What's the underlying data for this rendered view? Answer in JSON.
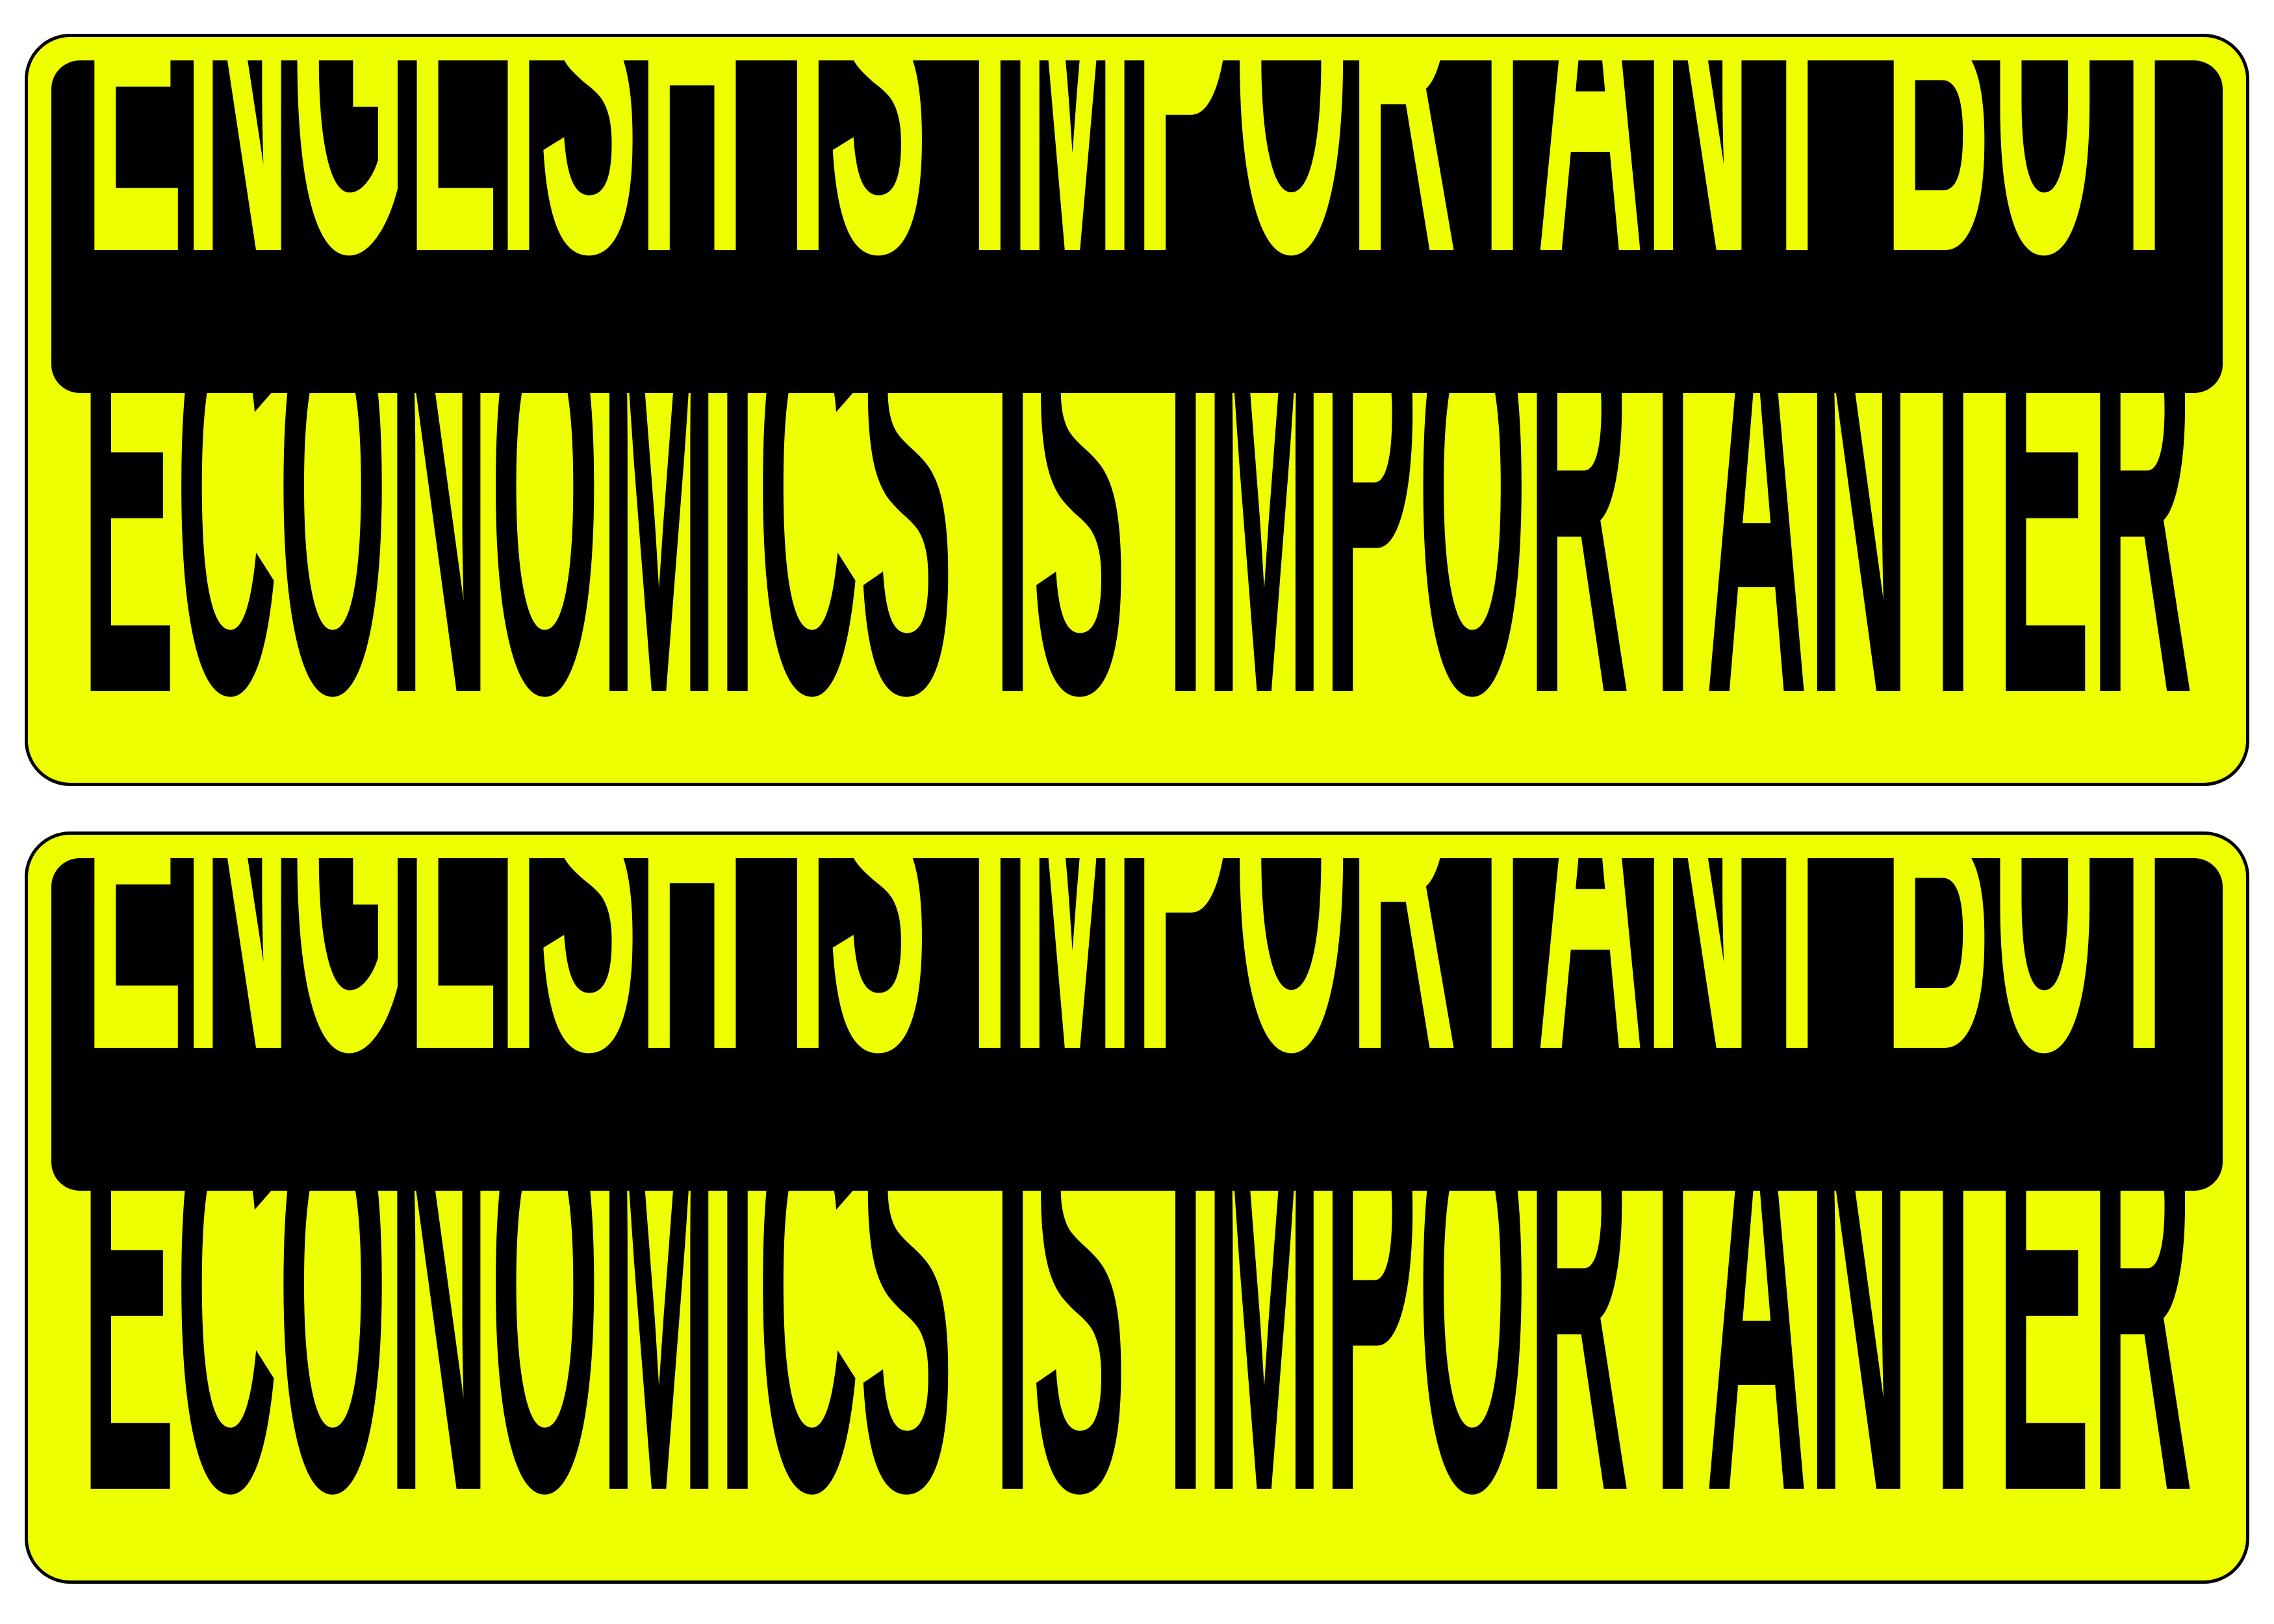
{
  "stickers": [
    {
      "line1": "ENGLISH IS IMPORTANT BUT",
      "line2": "ECONOMICS IS IMPORTANTER"
    },
    {
      "line1": "ENGLISH IS IMPORTANT BUT",
      "line2": "ECONOMICS IS IMPORTANTER"
    }
  ],
  "colors": {
    "background": "#eeff00",
    "ink": "#000000",
    "page": "#ffffff"
  }
}
